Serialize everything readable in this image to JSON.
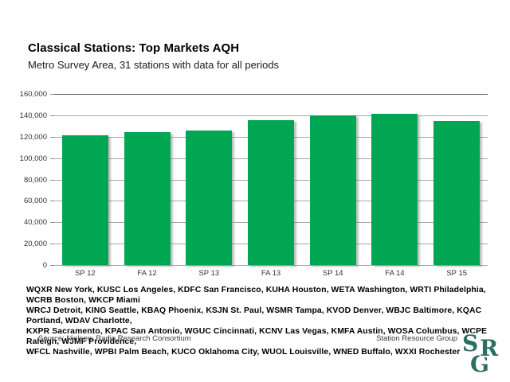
{
  "slide": {
    "title": "Classical Stations: Top Markets AQH",
    "subtitle": "Metro Survey Area, 31 stations with data for all periods",
    "footnote_lines": [
      "WQXR New York, KUSC Los Angeles, KDFC San Francisco, KUHA Houston, WETA Washington, WRTI Philadelphia, WCRB Boston, WKCP Miami",
      "WRCJ Detroit, KING Seattle, KBAQ Phoenix, KSJN St. Paul, WSMR Tampa, KVOD Denver, WBJC Baltimore, KQAC Portland, WDAV Charlotte,",
      "KXPR Sacramento, KPAC San Antonio, WGUC Cincinnati, KCNV Las Vegas, KMFA Austin, WOSA Columbus, WCPE Raleigh, WJMF Providence,",
      "WFCL Nashville, WPBI Palm Beach, KUCO Oklahoma City, WUOL Louisville, WNED Buffalo, WXXI Rochester"
    ],
    "source": "Source: Nielsen; Radio Research Consortium",
    "org": "Station Resource Group",
    "logo_letters": [
      "S",
      "R",
      "G"
    ],
    "logo_color": "#2b6e63"
  },
  "chart_data": {
    "type": "bar",
    "title": "Classical Stations: Top Markets AQH",
    "subtitle": "Metro Survey Area, 31 stations with data for all periods",
    "categories": [
      "SP 12",
      "FA 12",
      "SP 13",
      "FA 13",
      "SP 14",
      "FA 14",
      "SP 15"
    ],
    "values": [
      121000,
      124000,
      125500,
      135500,
      140000,
      141500,
      135000
    ],
    "xlabel": "",
    "ylabel": "",
    "ylim": [
      0,
      160000
    ],
    "ytick_step": 20000,
    "yticks": [
      {
        "value": 160000,
        "label": "160,000"
      },
      {
        "value": 140000,
        "label": "140,000"
      },
      {
        "value": 120000,
        "label": "120,000"
      },
      {
        "value": 100000,
        "label": "100,000"
      },
      {
        "value": 80000,
        "label": "80,000"
      },
      {
        "value": 60000,
        "label": "60,000"
      },
      {
        "value": 40000,
        "label": "40,000"
      },
      {
        "value": 20000,
        "label": "20,000"
      },
      {
        "value": 0,
        "label": "0"
      }
    ],
    "bar_color": "#00a651",
    "grid": true,
    "legend": false
  }
}
